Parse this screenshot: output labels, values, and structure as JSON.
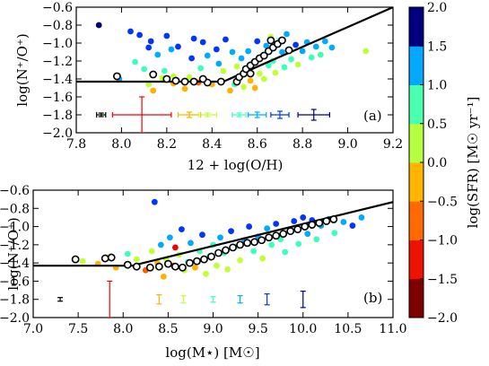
{
  "chart_data": [
    {
      "panel": "a",
      "type": "scatter",
      "panel_label": "(a)",
      "xlabel": "12 + log(O/H)",
      "ylabel": "log(N⁺/O⁺)",
      "xlim": [
        7.8,
        9.2
      ],
      "ylim": [
        -2.0,
        -0.6
      ],
      "xticks": [
        7.8,
        8.0,
        8.2,
        8.4,
        8.6,
        8.8,
        9.0,
        9.2
      ],
      "xtick_labels": [
        "7.8",
        "8.0",
        "8.2",
        "8.4",
        "8.6",
        "8.8",
        "9.0",
        "9.2"
      ],
      "yticks": [
        -2.0,
        -1.8,
        -1.6,
        -1.4,
        -1.2,
        -1.0,
        -0.8,
        -0.6
      ],
      "ytick_labels": [
        "−2.0",
        "−1.8",
        "−1.6",
        "−1.4",
        "−1.2",
        "−1.0",
        "−0.8",
        "−0.6"
      ],
      "fit_line": [
        [
          7.8,
          -1.43
        ],
        [
          8.45,
          -1.43
        ],
        [
          9.2,
          -0.6
        ]
      ],
      "points": [
        {
          "x": 7.9,
          "y": -0.8,
          "c": 1.9
        },
        {
          "x": 7.99,
          "y": -1.4,
          "c": 0.9
        },
        {
          "x": 8.04,
          "y": -0.87,
          "c": 1.6
        },
        {
          "x": 8.06,
          "y": -1.21,
          "c": 0.3
        },
        {
          "x": 8.08,
          "y": -0.91,
          "c": 1.4
        },
        {
          "x": 8.1,
          "y": -1.29,
          "c": 0.4
        },
        {
          "x": 8.12,
          "y": -1.46,
          "c": 0.2
        },
        {
          "x": 8.12,
          "y": -1.05,
          "c": 1.3
        },
        {
          "x": 8.13,
          "y": -0.98,
          "c": 1.6
        },
        {
          "x": 8.14,
          "y": -1.53,
          "c": -0.3
        },
        {
          "x": 8.16,
          "y": -1.13,
          "c": 1.0
        },
        {
          "x": 8.18,
          "y": -1.39,
          "c": 0.1
        },
        {
          "x": 8.19,
          "y": -1.31,
          "c": 0.3
        },
        {
          "x": 8.2,
          "y": -0.92,
          "c": 1.5
        },
        {
          "x": 8.22,
          "y": -1.07,
          "c": 1.2
        },
        {
          "x": 8.23,
          "y": -1.37,
          "c": -0.1
        },
        {
          "x": 8.23,
          "y": -1.45,
          "c": -0.6
        },
        {
          "x": 8.25,
          "y": -1.04,
          "c": 1.6
        },
        {
          "x": 8.28,
          "y": -1.51,
          "c": -0.5
        },
        {
          "x": 8.3,
          "y": -1.38,
          "c": 0.0
        },
        {
          "x": 8.31,
          "y": -1.17,
          "c": 1.3
        },
        {
          "x": 8.32,
          "y": -0.95,
          "c": 1.7
        },
        {
          "x": 8.34,
          "y": -1.44,
          "c": -0.8
        },
        {
          "x": 8.35,
          "y": -1.28,
          "c": 0.5
        },
        {
          "x": 8.36,
          "y": -0.99,
          "c": 1.4
        },
        {
          "x": 8.38,
          "y": -1.14,
          "c": 1.2
        },
        {
          "x": 8.4,
          "y": -1.46,
          "c": -0.7
        },
        {
          "x": 8.42,
          "y": -1.07,
          "c": 1.5
        },
        {
          "x": 8.43,
          "y": -1.23,
          "c": 0.9
        },
        {
          "x": 8.45,
          "y": -1.31,
          "c": -0.2
        },
        {
          "x": 8.46,
          "y": -0.96,
          "c": 1.6
        },
        {
          "x": 8.48,
          "y": -1.53,
          "c": -0.4
        },
        {
          "x": 8.49,
          "y": -1.1,
          "c": 1.1
        },
        {
          "x": 8.5,
          "y": -1.46,
          "c": 0.3
        },
        {
          "x": 8.51,
          "y": -1.26,
          "c": 0.1
        },
        {
          "x": 8.52,
          "y": -1.38,
          "c": -0.5
        },
        {
          "x": 8.53,
          "y": -1.17,
          "c": 0.8
        },
        {
          "x": 8.54,
          "y": -1.49,
          "c": 0.0
        },
        {
          "x": 8.55,
          "y": -1.3,
          "c": 0.4
        },
        {
          "x": 8.56,
          "y": -1.09,
          "c": 1.1
        },
        {
          "x": 8.57,
          "y": -1.42,
          "c": -0.4
        },
        {
          "x": 8.58,
          "y": -1.22,
          "c": 0.6
        },
        {
          "x": 8.59,
          "y": -1.5,
          "c": -0.3
        },
        {
          "x": 8.6,
          "y": -0.98,
          "c": 1.5
        },
        {
          "x": 8.61,
          "y": -1.34,
          "c": 0.2
        },
        {
          "x": 8.62,
          "y": -1.15,
          "c": 0.9
        },
        {
          "x": 8.63,
          "y": -1.4,
          "c": -0.1
        },
        {
          "x": 8.64,
          "y": -1.03,
          "c": 1.2
        },
        {
          "x": 8.65,
          "y": -1.25,
          "c": 0.5
        },
        {
          "x": 8.66,
          "y": -0.93,
          "c": 0.2
        },
        {
          "x": 8.67,
          "y": -1.2,
          "c": 0.7
        },
        {
          "x": 8.68,
          "y": -1.33,
          "c": 0.0
        },
        {
          "x": 8.7,
          "y": -0.97,
          "c": 0.4
        },
        {
          "x": 8.71,
          "y": -1.1,
          "c": 1.0
        },
        {
          "x": 8.72,
          "y": -1.27,
          "c": 0.3
        },
        {
          "x": 8.73,
          "y": -0.9,
          "c": 0.8
        },
        {
          "x": 8.75,
          "y": -1.18,
          "c": 0.6
        },
        {
          "x": 8.77,
          "y": -1.02,
          "c": 1.3
        },
        {
          "x": 8.78,
          "y": -1.24,
          "c": 0.2
        },
        {
          "x": 8.8,
          "y": -1.09,
          "c": 0.9
        },
        {
          "x": 8.82,
          "y": -0.99,
          "c": 1.1
        },
        {
          "x": 8.84,
          "y": -1.16,
          "c": 0.6
        },
        {
          "x": 8.86,
          "y": -1.04,
          "c": 1.0
        },
        {
          "x": 8.88,
          "y": -1.13,
          "c": 0.3
        },
        {
          "x": 8.9,
          "y": -0.98,
          "c": 1.2
        },
        {
          "x": 8.93,
          "y": -1.05,
          "c": 0.8
        },
        {
          "x": 9.08,
          "y": -1.09,
          "c": 0.0
        }
      ],
      "binned": [
        {
          "x": 7.98,
          "y": -1.37
        },
        {
          "x": 8.14,
          "y": -1.35
        },
        {
          "x": 8.2,
          "y": -1.4
        },
        {
          "x": 8.24,
          "y": -1.42
        },
        {
          "x": 8.28,
          "y": -1.43
        },
        {
          "x": 8.32,
          "y": -1.43
        },
        {
          "x": 8.38,
          "y": -1.44
        },
        {
          "x": 8.44,
          "y": -1.43
        },
        {
          "x": 8.51,
          "y": -1.43
        },
        {
          "x": 8.52,
          "y": -1.38
        },
        {
          "x": 8.54,
          "y": -1.34
        },
        {
          "x": 8.55,
          "y": -1.29
        },
        {
          "x": 8.57,
          "y": -1.25
        },
        {
          "x": 8.59,
          "y": -1.21
        },
        {
          "x": 8.61,
          "y": -1.17
        },
        {
          "x": 8.63,
          "y": -1.14
        },
        {
          "x": 8.65,
          "y": -1.09
        },
        {
          "x": 8.67,
          "y": -1.05
        },
        {
          "x": 8.69,
          "y": -1.01
        },
        {
          "x": 8.71,
          "y": -0.97
        },
        {
          "x": 8.74,
          "y": -1.08
        },
        {
          "x": 8.66,
          "y": -0.97
        },
        {
          "x": 8.57,
          "y": -1.34
        },
        {
          "x": 8.36,
          "y": -1.4
        }
      ],
      "error_bars": [
        {
          "x": 7.91,
          "y": -1.8,
          "xerr": 0.02,
          "yerr": 0.02,
          "c": null
        },
        {
          "x": 8.09,
          "y": -1.8,
          "xerr": 0.13,
          "yerr": 0.2,
          "c": -1.3
        },
        {
          "x": 8.3,
          "y": -1.8,
          "xerr": 0.05,
          "yerr": 0.03,
          "c": -0.5
        },
        {
          "x": 8.38,
          "y": -1.8,
          "xerr": 0.04,
          "yerr": 0.02,
          "c": 0.0
        },
        {
          "x": 8.52,
          "y": -1.8,
          "xerr": 0.03,
          "yerr": 0.02,
          "c": 0.5
        },
        {
          "x": 8.6,
          "y": -1.8,
          "xerr": 0.04,
          "yerr": 0.03,
          "c": 1.0
        },
        {
          "x": 8.7,
          "y": -1.8,
          "xerr": 0.04,
          "yerr": 0.04,
          "c": 1.5
        },
        {
          "x": 8.85,
          "y": -1.8,
          "xerr": 0.07,
          "yerr": 0.06,
          "c": 1.9
        }
      ]
    },
    {
      "panel": "b",
      "type": "scatter",
      "panel_label": "(b)",
      "xlabel": "log(M⋆) [M☉]",
      "ylabel": "log(N⁺/O⁺)",
      "xlim": [
        7.0,
        11.0
      ],
      "ylim": [
        -2.0,
        -0.6
      ],
      "xticks": [
        7.0,
        7.5,
        8.0,
        8.5,
        9.0,
        9.5,
        10.0,
        10.5,
        11.0
      ],
      "xtick_labels": [
        "7.0",
        "7.5",
        "8.0",
        "8.5",
        "9.0",
        "9.5",
        "10.0",
        "10.5",
        "11.0"
      ],
      "yticks": [
        -2.0,
        -1.8,
        -1.6,
        -1.4,
        -1.2,
        -1.0,
        -0.8,
        -0.6
      ],
      "ytick_labels": [
        "−2.0",
        "−1.8",
        "−1.6",
        "−1.4",
        "−1.2",
        "−1.0",
        "−0.8",
        "−0.6"
      ],
      "fit_line": [
        [
          7.0,
          -1.43
        ],
        [
          8.1,
          -1.43
        ],
        [
          11.0,
          -0.73
        ]
      ],
      "points": [
        {
          "x": 7.55,
          "y": -1.38,
          "c": 0.2
        },
        {
          "x": 7.72,
          "y": -1.41,
          "c": -0.6
        },
        {
          "x": 7.85,
          "y": -1.33,
          "c": 0.1
        },
        {
          "x": 7.92,
          "y": -1.45,
          "c": -0.4
        },
        {
          "x": 8.05,
          "y": -1.3,
          "c": 0.3
        },
        {
          "x": 8.15,
          "y": -1.36,
          "c": -0.2
        },
        {
          "x": 8.25,
          "y": -1.48,
          "c": -0.8
        },
        {
          "x": 8.32,
          "y": -1.27,
          "c": 0.2
        },
        {
          "x": 8.35,
          "y": -0.73,
          "c": 1.4
        },
        {
          "x": 8.38,
          "y": -1.4,
          "c": -0.5
        },
        {
          "x": 8.42,
          "y": -1.2,
          "c": 1.1
        },
        {
          "x": 8.45,
          "y": -1.55,
          "c": -0.3
        },
        {
          "x": 8.48,
          "y": -1.36,
          "c": 0.0
        },
        {
          "x": 8.52,
          "y": -1.12,
          "c": 1.2
        },
        {
          "x": 8.56,
          "y": -1.43,
          "c": -0.9
        },
        {
          "x": 8.58,
          "y": -1.23,
          "c": -1.4
        },
        {
          "x": 8.62,
          "y": -1.31,
          "c": 0.1
        },
        {
          "x": 8.65,
          "y": -1.03,
          "c": 1.5
        },
        {
          "x": 8.68,
          "y": -1.48,
          "c": -0.2
        },
        {
          "x": 8.72,
          "y": -1.39,
          "c": 0.4
        },
        {
          "x": 8.75,
          "y": -1.18,
          "c": 0.9
        },
        {
          "x": 8.8,
          "y": -1.45,
          "c": -0.6
        },
        {
          "x": 8.85,
          "y": -1.27,
          "c": 0.3
        },
        {
          "x": 8.88,
          "y": -1.09,
          "c": 1.3
        },
        {
          "x": 8.92,
          "y": -1.52,
          "c": -0.1
        },
        {
          "x": 8.96,
          "y": -1.33,
          "c": 0.5
        },
        {
          "x": 9.0,
          "y": -1.2,
          "c": 0.7
        },
        {
          "x": 9.04,
          "y": -1.43,
          "c": 0.0
        },
        {
          "x": 9.08,
          "y": -1.12,
          "c": 1.1
        },
        {
          "x": 9.12,
          "y": -1.29,
          "c": 0.4
        },
        {
          "x": 9.16,
          "y": -1.47,
          "c": 0.2
        },
        {
          "x": 9.2,
          "y": -1.05,
          "c": 1.3
        },
        {
          "x": 9.25,
          "y": -1.22,
          "c": 0.6
        },
        {
          "x": 9.3,
          "y": -1.37,
          "c": 0.1
        },
        {
          "x": 9.35,
          "y": -1.15,
          "c": 0.9
        },
        {
          "x": 9.4,
          "y": -1.0,
          "c": 1.4
        },
        {
          "x": 9.45,
          "y": -1.27,
          "c": 0.3
        },
        {
          "x": 9.5,
          "y": -1.11,
          "c": 0.8
        },
        {
          "x": 9.55,
          "y": -1.35,
          "c": 0.2
        },
        {
          "x": 9.6,
          "y": -1.02,
          "c": 1.2
        },
        {
          "x": 9.65,
          "y": -1.2,
          "c": 0.5
        },
        {
          "x": 9.7,
          "y": -0.97,
          "c": 1.5
        },
        {
          "x": 9.75,
          "y": -1.14,
          "c": 0.7
        },
        {
          "x": 9.8,
          "y": -1.28,
          "c": 0.3
        },
        {
          "x": 9.85,
          "y": -1.05,
          "c": 1.1
        },
        {
          "x": 9.9,
          "y": -0.94,
          "c": 1.6
        },
        {
          "x": 9.95,
          "y": -1.19,
          "c": 0.6
        },
        {
          "x": 10.0,
          "y": -0.9,
          "c": 1.7
        },
        {
          "x": 10.05,
          "y": -1.08,
          "c": 0.9
        },
        {
          "x": 10.1,
          "y": -0.93,
          "c": 1.3
        },
        {
          "x": 10.15,
          "y": -1.14,
          "c": 0.5
        },
        {
          "x": 10.2,
          "y": -0.99,
          "c": 1.0
        },
        {
          "x": 10.28,
          "y": -0.92,
          "c": 1.2
        },
        {
          "x": 10.35,
          "y": -1.07,
          "c": 0.7
        },
        {
          "x": 10.45,
          "y": -0.95,
          "c": 1.1
        },
        {
          "x": 10.55,
          "y": -0.99,
          "c": 1.4
        },
        {
          "x": 10.65,
          "y": -0.9,
          "c": 0.9
        }
      ],
      "binned": [
        {
          "x": 7.47,
          "y": -1.36
        },
        {
          "x": 7.8,
          "y": -1.35
        },
        {
          "x": 7.87,
          "y": -1.34
        },
        {
          "x": 8.05,
          "y": -1.42
        },
        {
          "x": 8.15,
          "y": -1.44
        },
        {
          "x": 8.3,
          "y": -1.45
        },
        {
          "x": 8.4,
          "y": -1.44
        },
        {
          "x": 8.5,
          "y": -1.41
        },
        {
          "x": 8.58,
          "y": -1.44
        },
        {
          "x": 8.66,
          "y": -1.45
        },
        {
          "x": 8.74,
          "y": -1.4
        },
        {
          "x": 8.82,
          "y": -1.38
        },
        {
          "x": 8.9,
          "y": -1.36
        },
        {
          "x": 8.98,
          "y": -1.33
        },
        {
          "x": 9.06,
          "y": -1.29
        },
        {
          "x": 9.14,
          "y": -1.26
        },
        {
          "x": 9.22,
          "y": -1.23
        },
        {
          "x": 9.3,
          "y": -1.2
        },
        {
          "x": 9.38,
          "y": -1.18
        },
        {
          "x": 9.46,
          "y": -1.17
        },
        {
          "x": 9.54,
          "y": -1.15
        },
        {
          "x": 9.62,
          "y": -1.12
        },
        {
          "x": 9.7,
          "y": -1.1
        },
        {
          "x": 9.78,
          "y": -1.08
        },
        {
          "x": 9.86,
          "y": -1.05
        },
        {
          "x": 9.94,
          "y": -1.03
        },
        {
          "x": 10.02,
          "y": -1.0
        },
        {
          "x": 10.1,
          "y": -0.98
        },
        {
          "x": 10.18,
          "y": -0.96
        },
        {
          "x": 10.26,
          "y": -0.94
        },
        {
          "x": 10.34,
          "y": -0.92
        }
      ],
      "error_bars": [
        {
          "x": 7.3,
          "y": -1.8,
          "xerr": 0.0,
          "yerr": 0.02,
          "c": null
        },
        {
          "x": 7.85,
          "y": -1.8,
          "xerr": 0.0,
          "yerr": 0.2,
          "c": -1.3
        },
        {
          "x": 8.4,
          "y": -1.8,
          "xerr": 0.0,
          "yerr": 0.05,
          "c": -0.5
        },
        {
          "x": 8.67,
          "y": -1.8,
          "xerr": 0.0,
          "yerr": 0.04,
          "c": 0.0
        },
        {
          "x": 9.0,
          "y": -1.8,
          "xerr": 0.0,
          "yerr": 0.03,
          "c": 0.5
        },
        {
          "x": 9.3,
          "y": -1.8,
          "xerr": 0.0,
          "yerr": 0.04,
          "c": 1.0
        },
        {
          "x": 9.6,
          "y": -1.8,
          "xerr": 0.0,
          "yerr": 0.06,
          "c": 1.5
        },
        {
          "x": 10.0,
          "y": -1.8,
          "xerr": 0.0,
          "yerr": 0.09,
          "c": 1.9
        }
      ]
    }
  ],
  "colorbar": {
    "label": "log(SFR) [M☉ yr⁻¹]",
    "range": [
      -2.0,
      2.0
    ],
    "ticks": [
      -2.0,
      -1.5,
      -1.0,
      -0.5,
      0.0,
      0.5,
      1.0,
      1.5,
      2.0
    ],
    "tick_labels": [
      "−2.0",
      "−1.5",
      "−1.0",
      "−0.5",
      "0.0",
      "0.5",
      "1.0",
      "1.5",
      "2.0"
    ],
    "colors": [
      "#7f0000",
      "#f20000",
      "#ff5a00",
      "#ffb100",
      "#c1ff36",
      "#3dffb9",
      "#00aaff",
      "#0034ff",
      "#00007f"
    ]
  },
  "styles": {
    "fit_line_color": "#000000",
    "binned_marker_fill": "#ffffff",
    "binned_marker_edge": "#000000",
    "uncolored_error_color": "#000000"
  }
}
